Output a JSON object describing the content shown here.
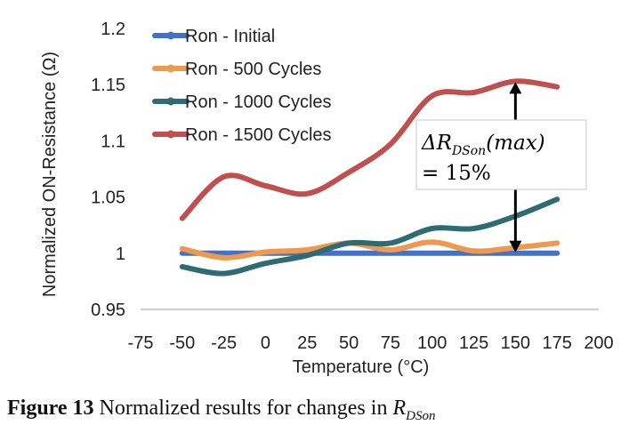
{
  "chart_data": {
    "type": "line",
    "title": "",
    "xlabel": "Temperature (°C)",
    "ylabel": "Normalized ON-Resistance (Ω)",
    "xlim": [
      -75,
      200
    ],
    "ylim": [
      0.95,
      1.2
    ],
    "xticks": [
      "-75",
      "-50",
      "-25",
      "0",
      "25",
      "50",
      "75",
      "100",
      "125",
      "150",
      "175",
      "200"
    ],
    "yticks": [
      "0.95",
      "1",
      "1.05",
      "1.1",
      "1.15",
      "1.2"
    ],
    "grid": false,
    "legend_position": "top-left",
    "x": [
      -50,
      -25,
      0,
      25,
      50,
      75,
      100,
      125,
      150,
      175
    ],
    "series": [
      {
        "name": "Ron - Initial",
        "color": "#4472c4",
        "values": [
          1.0,
          1.0,
          1.0,
          1.0,
          1.0,
          1.0,
          1.0,
          1.0,
          1.0,
          1.0
        ]
      },
      {
        "name": "Ron - 500 Cycles",
        "color": "#ed9a4e",
        "values": [
          1.004,
          0.996,
          1.001,
          1.003,
          1.009,
          1.003,
          1.01,
          1.002,
          1.005,
          1.009
        ]
      },
      {
        "name": "Ron - 1000 Cycles",
        "color": "#2e6b75",
        "values": [
          0.988,
          0.982,
          0.991,
          0.998,
          1.009,
          1.009,
          1.022,
          1.022,
          1.033,
          1.048
        ]
      },
      {
        "name": "Ron - 1500 Cycles",
        "color": "#c0504d",
        "values": [
          1.031,
          1.068,
          1.06,
          1.053,
          1.072,
          1.097,
          1.14,
          1.143,
          1.153,
          1.148
        ]
      }
    ],
    "annotation": {
      "line1_prefix": "ΔR",
      "line1_sub": "DSon",
      "line1_suffix": "(max)",
      "line2": "= 15%",
      "arrow_x": 150,
      "arrow_from": 1.0,
      "arrow_to": 1.153
    }
  },
  "caption": {
    "label": "Figure 13",
    "text": " Normalized results for changes in ",
    "symbol": "R",
    "symbol_sub": "DSon"
  }
}
